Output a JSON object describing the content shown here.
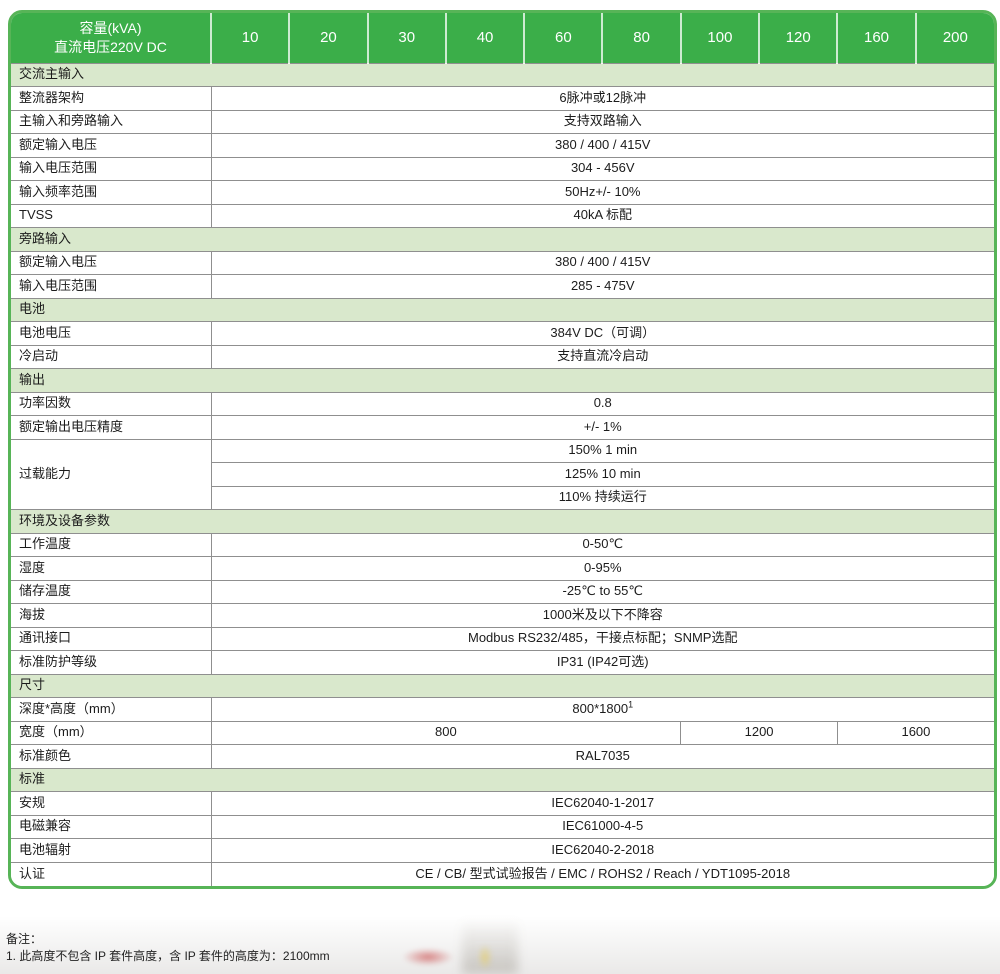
{
  "colors": {
    "header_green": "#3bae49",
    "section_green": "#d9e8cc",
    "border_green": "#57b457",
    "grid_gray": "#8f8f8f"
  },
  "table": {
    "header": {
      "title_line1": "容量(kVA)",
      "title_line2": "直流电压220V DC",
      "capacities": [
        "10",
        "20",
        "30",
        "40",
        "60",
        "80",
        "100",
        "120",
        "160",
        "200"
      ]
    },
    "sections": [
      {
        "title": "交流主输入",
        "rows": [
          {
            "label": "整流器架构",
            "value": "6脉冲或12脉冲"
          },
          {
            "label": "主输入和旁路输入",
            "value": "支持双路输入"
          },
          {
            "label": "额定输入电压",
            "value": "380 / 400 / 415V"
          },
          {
            "label": "输入电压范围",
            "value": "304 - 456V"
          },
          {
            "label": "输入频率范围",
            "value": "50Hz+/- 10%"
          },
          {
            "label": "TVSS",
            "value": "40kA 标配"
          }
        ]
      },
      {
        "title": "旁路输入",
        "rows": [
          {
            "label": "额定输入电压",
            "value": "380 / 400 / 415V"
          },
          {
            "label": "输入电压范围",
            "value": "285 - 475V"
          }
        ]
      },
      {
        "title": "电池",
        "rows": [
          {
            "label": "电池电压",
            "value": "384V DC（可调）"
          },
          {
            "label": "冷启动",
            "value": "支持直流冷启动"
          }
        ]
      },
      {
        "title": "输出",
        "rows": [
          {
            "label": "功率因数",
            "value": "0.8"
          },
          {
            "label": "额定输出电压精度",
            "value": "+/- 1%"
          },
          {
            "label": "过载能力",
            "values": [
              "150% 1 min",
              "125% 10 min",
              "110% 持续运行"
            ]
          }
        ]
      },
      {
        "title": "环境及设备参数",
        "rows": [
          {
            "label": "工作温度",
            "value": "0-50℃"
          },
          {
            "label": "湿度",
            "value": "0-95%"
          },
          {
            "label": "储存温度",
            "value": "-25℃ to 55℃"
          },
          {
            "label": "海拔",
            "value": "1000米及以下不降容"
          },
          {
            "label": "通讯接口",
            "value": "Modbus RS232/485，干接点标配；SNMP选配"
          },
          {
            "label": "标准防护等级",
            "value": "IP31 (IP42可选)"
          }
        ]
      },
      {
        "title": "尺寸",
        "rows": [
          {
            "label": "深度*高度（mm）",
            "value": "800*1800",
            "sup": "1"
          },
          {
            "label": "宽度（mm）",
            "cells": [
              {
                "text": "800",
                "span": 6
              },
              {
                "text": "1200",
                "span": 2
              },
              {
                "text": "1600",
                "span": 2
              }
            ]
          },
          {
            "label": "标准颜色",
            "value": "RAL7035"
          }
        ]
      },
      {
        "title": "标准",
        "rows": [
          {
            "label": "安规",
            "value": "IEC62040-1-2017"
          },
          {
            "label": "电磁兼容",
            "value": "IEC61000-4-5"
          },
          {
            "label": "电池辐射",
            "value": "IEC62040-2-2018"
          },
          {
            "label": "认证",
            "value": "CE / CB/ 型式试验报告 / EMC / ROHS2 / Reach / YDT1095-2018"
          }
        ]
      }
    ]
  },
  "notes": {
    "title": "备注：",
    "items": [
      "1. 此高度不包含 IP 套件高度，含 IP 套件的高度为：2100mm"
    ]
  }
}
